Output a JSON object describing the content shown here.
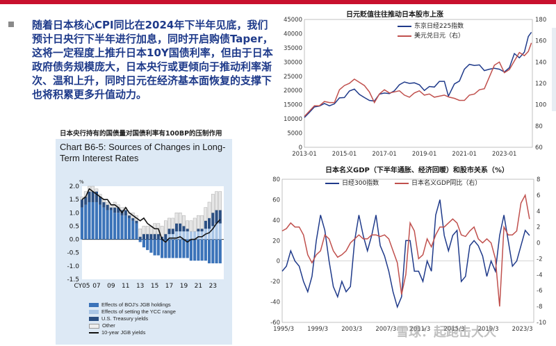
{
  "headline": "随着日本核心CPI同比在2024年下半年见底，我们预计日央行下半年进行加息，同时开启购债Taper，这将一定程度上推升日本10Y国债利率，但由于日本政府债务规模庞大，日本央行或更倾向于推动利率渐次、温和上升，同时日元在经济基本面恢复的支撑下也将积累更多升值动力。",
  "left_figure": {
    "caption": "日本央行持有的国债量对国债利率有100BP的压制作用",
    "panel_title": "Chart B6-5: Sources of Changes in Long-Term Interest Rates",
    "legend": [
      {
        "label": "Effects of BOJ's JGB holdings",
        "color": "#3b73b9"
      },
      {
        "label": "Effects of setting the YCC range",
        "color": "#aac6e6"
      },
      {
        "label": "U.S. Treasury yields",
        "color": "#2b4f82"
      },
      {
        "label": "Other",
        "color": "#eeeeee"
      },
      {
        "label": "10-year JGB yields",
        "color": "#111111"
      }
    ]
  },
  "chart_data": [
    {
      "type": "bar",
      "title": "Chart B6-5: Sources of Changes in Long-Term Interest Rates",
      "ylabel": "%",
      "ylim": [
        -1.5,
        2.0
      ],
      "yticks": [
        -1.5,
        -1.0,
        -0.5,
        0.0,
        0.5,
        1.0,
        1.5,
        2.0
      ],
      "xticks": [
        "CY05",
        "07",
        "09",
        "11",
        "13",
        "15",
        "17",
        "19",
        "21",
        "23"
      ],
      "x_range": [
        2005,
        2024.5
      ],
      "x": [
        2005.0,
        2005.5,
        2006.0,
        2006.5,
        2007.0,
        2007.5,
        2008.0,
        2008.5,
        2009.0,
        2009.5,
        2010.0,
        2010.5,
        2011.0,
        2011.5,
        2012.0,
        2012.5,
        2013.0,
        2013.5,
        2014.0,
        2014.5,
        2015.0,
        2015.5,
        2016.0,
        2016.5,
        2017.0,
        2017.5,
        2018.0,
        2018.5,
        2019.0,
        2019.5,
        2020.0,
        2020.5,
        2021.0,
        2021.5,
        2022.0,
        2022.5,
        2023.0,
        2023.5,
        2024.0
      ],
      "series": [
        {
          "name": "Effects of BOJ's JGB holdings",
          "values": [
            1.2,
            1.3,
            1.4,
            1.4,
            1.4,
            1.3,
            1.2,
            1.1,
            1.1,
            1.0,
            1.0,
            0.9,
            0.9,
            0.8,
            0.7,
            0.6,
            -0.1,
            -0.3,
            -0.4,
            -0.5,
            -0.6,
            -0.6,
            -0.7,
            -0.7,
            -0.7,
            -0.7,
            -0.7,
            -0.7,
            -0.7,
            -0.7,
            -0.8,
            -0.8,
            -0.8,
            -0.8,
            -0.8,
            -0.9,
            -0.9,
            -0.9,
            -0.9
          ]
        },
        {
          "name": "Effects of setting the YCC range",
          "values": [
            0,
            0,
            0,
            0,
            0,
            0,
            0,
            0,
            0,
            0,
            0,
            0,
            0,
            0,
            0,
            0,
            0,
            0,
            0,
            0,
            0,
            0,
            0,
            0,
            0.2,
            0.2,
            0.3,
            0.3,
            0.3,
            0.3,
            0.3,
            0.3,
            0.3,
            0.3,
            0.4,
            0.4,
            0.5,
            0.6,
            0.6
          ]
        },
        {
          "name": "U.S. Treasury yields",
          "values": [
            0.3,
            0.3,
            0.4,
            0.4,
            0.4,
            0.3,
            0.2,
            0.2,
            0.1,
            0.2,
            0.2,
            0.2,
            0.2,
            0.1,
            0.1,
            0.1,
            0.1,
            0.2,
            0.2,
            0.2,
            0.2,
            0.2,
            0.1,
            0.2,
            0.2,
            0.2,
            0.3,
            0.3,
            0.2,
            0.1,
            0,
            0,
            0.1,
            0.1,
            0.3,
            0.4,
            0.5,
            0.5,
            0.5
          ]
        },
        {
          "name": "Other",
          "values": [
            0.1,
            0.2,
            0.2,
            0.2,
            0.1,
            0.1,
            0.1,
            0.1,
            0.1,
            0.2,
            0.1,
            0.1,
            0.1,
            0.1,
            0.2,
            0.2,
            0.3,
            0.3,
            0.3,
            0.3,
            0.4,
            0.4,
            0.4,
            0.5,
            0.4,
            0.4,
            0.4,
            0.4,
            0.4,
            0.3,
            0.4,
            0.5,
            0.5,
            0.5,
            0.5,
            0.6,
            0.7,
            0.7,
            0.7
          ]
        },
        {
          "name": "10-year JGB yields",
          "type": "line",
          "values": [
            1.5,
            1.6,
            1.9,
            1.8,
            1.7,
            1.6,
            1.5,
            1.5,
            1.3,
            1.3,
            1.2,
            1.0,
            1.2,
            1.0,
            0.9,
            0.8,
            0.7,
            0.8,
            0.6,
            0.5,
            0.4,
            0.4,
            0.0,
            -0.1,
            0.05,
            0.05,
            0.05,
            0.1,
            0.0,
            -0.1,
            0.0,
            0.0,
            0.1,
            0.1,
            0.2,
            0.25,
            0.4,
            0.6,
            0.75
          ]
        }
      ]
    },
    {
      "type": "line",
      "title": "日元贬值往往推动日本股市上涨",
      "x_range": [
        2013.0,
        2024.4
      ],
      "xticks": [
        "2013-01",
        "2015-01",
        "2017-01",
        "2019-01",
        "2021-01",
        "2023-01"
      ],
      "ylim_left": [
        0,
        45000
      ],
      "yticks_left": [
        0,
        5000,
        10000,
        15000,
        20000,
        25000,
        30000,
        35000,
        40000,
        45000
      ],
      "ylim_right": [
        60,
        180
      ],
      "yticks_right": [
        60,
        80,
        100,
        120,
        140,
        160,
        180
      ],
      "series": [
        {
          "name": "东京日经225指数",
          "axis": "left",
          "color": "#1f3a8a",
          "x": [
            2013.0,
            2013.25,
            2013.5,
            2013.75,
            2014.0,
            2014.25,
            2014.5,
            2014.75,
            2015.0,
            2015.25,
            2015.5,
            2015.75,
            2016.0,
            2016.25,
            2016.5,
            2016.75,
            2017.0,
            2017.25,
            2017.5,
            2017.75,
            2018.0,
            2018.25,
            2018.5,
            2018.75,
            2019.0,
            2019.25,
            2019.5,
            2019.75,
            2020.0,
            2020.2,
            2020.5,
            2020.75,
            2021.0,
            2021.25,
            2021.5,
            2021.75,
            2022.0,
            2022.25,
            2022.5,
            2022.75,
            2023.0,
            2023.25,
            2023.5,
            2023.75,
            2024.0,
            2024.2,
            2024.35
          ],
          "values": [
            10500,
            12300,
            14200,
            14500,
            15400,
            14600,
            15300,
            17400,
            17500,
            19800,
            20500,
            18600,
            17500,
            16500,
            16300,
            18700,
            19100,
            18900,
            19900,
            22000,
            23000,
            22500,
            22700,
            22000,
            20000,
            21400,
            21200,
            23200,
            23200,
            18000,
            22300,
            23300,
            27500,
            29200,
            28800,
            29000,
            27000,
            27500,
            27800,
            27500,
            26500,
            28000,
            33000,
            31500,
            33500,
            39000,
            40500
          ]
        },
        {
          "name": "美元兑日元（右）",
          "axis": "right",
          "color": "#c0504d",
          "x": [
            2013.0,
            2013.25,
            2013.5,
            2013.75,
            2014.0,
            2014.25,
            2014.5,
            2014.75,
            2015.0,
            2015.25,
            2015.5,
            2015.75,
            2016.0,
            2016.25,
            2016.5,
            2016.75,
            2017.0,
            2017.25,
            2017.5,
            2017.75,
            2018.0,
            2018.25,
            2018.5,
            2018.75,
            2019.0,
            2019.25,
            2019.5,
            2019.75,
            2020.0,
            2020.25,
            2020.5,
            2020.75,
            2021.0,
            2021.25,
            2021.5,
            2021.75,
            2022.0,
            2022.25,
            2022.5,
            2022.75,
            2023.0,
            2023.25,
            2023.5,
            2023.75,
            2024.0,
            2024.2,
            2024.35
          ],
          "values": [
            89,
            94,
            99,
            99,
            103,
            102,
            102,
            114,
            118,
            120,
            124,
            121,
            118,
            112,
            102,
            110,
            114,
            111,
            112,
            113,
            109,
            107,
            111,
            113,
            109,
            110,
            107,
            108,
            109,
            107,
            106,
            104,
            104,
            109,
            110,
            114,
            115,
            126,
            137,
            140,
            130,
            133,
            141,
            149,
            146,
            150,
            158
          ]
        }
      ]
    },
    {
      "type": "line",
      "title": "日本名义GDP（下半年通胀、经济回暖）和股市关系（%）",
      "x_range": [
        1995.0,
        2024.5
      ],
      "xticks": [
        "1995/3",
        "1999/3",
        "2003/3",
        "2007/3",
        "2011/3",
        "2015/3",
        "2019/3",
        "2023/3"
      ],
      "ylim_left": [
        -60,
        80
      ],
      "yticks_left": [
        -60,
        -40,
        -20,
        0,
        20,
        40,
        60,
        80
      ],
      "ylim_right": [
        -10,
        8
      ],
      "yticks_right": [
        -10,
        -8,
        -6,
        -4,
        -2,
        0,
        2,
        4,
        6,
        8
      ],
      "series": [
        {
          "name": "日经300指数",
          "axis": "left",
          "color": "#1f3a8a",
          "x": [
            1995.0,
            1995.5,
            1996.0,
            1996.5,
            1997.0,
            1997.5,
            1998.0,
            1998.5,
            1999.0,
            1999.5,
            2000.0,
            2000.5,
            2001.0,
            2001.5,
            2002.0,
            2002.5,
            2003.0,
            2003.5,
            2004.0,
            2004.5,
            2005.0,
            2005.5,
            2006.0,
            2006.5,
            2007.0,
            2007.5,
            2008.0,
            2008.5,
            2009.0,
            2009.5,
            2010.0,
            2010.5,
            2011.0,
            2011.5,
            2012.0,
            2012.5,
            2013.0,
            2013.5,
            2014.0,
            2014.5,
            2015.0,
            2015.5,
            2016.0,
            2016.5,
            2017.0,
            2017.5,
            2018.0,
            2018.5,
            2019.0,
            2019.5,
            2020.0,
            2020.5,
            2021.0,
            2021.5,
            2022.0,
            2022.5,
            2023.0,
            2023.5,
            2024.0
          ],
          "values": [
            -10,
            -5,
            10,
            0,
            -5,
            -20,
            -30,
            -15,
            20,
            45,
            30,
            0,
            -25,
            -35,
            -20,
            -30,
            -25,
            20,
            45,
            25,
            10,
            25,
            45,
            15,
            5,
            -10,
            -30,
            -45,
            -35,
            20,
            20,
            -10,
            -10,
            -20,
            0,
            -10,
            45,
            60,
            25,
            10,
            25,
            30,
            -20,
            -15,
            15,
            20,
            15,
            5,
            -15,
            0,
            -10,
            25,
            45,
            20,
            -5,
            0,
            15,
            30,
            25
          ]
        },
        {
          "name": "日本名义GDP同比（右）",
          "axis": "right",
          "color": "#c0504d",
          "x": [
            1995.0,
            1995.5,
            1996.0,
            1996.5,
            1997.0,
            1997.5,
            1998.0,
            1998.5,
            1999.0,
            1999.5,
            2000.0,
            2000.5,
            2001.0,
            2001.5,
            2002.0,
            2002.5,
            2003.0,
            2003.5,
            2004.0,
            2004.5,
            2005.0,
            2005.5,
            2006.0,
            2006.5,
            2007.0,
            2007.5,
            2008.0,
            2008.5,
            2009.0,
            2009.5,
            2010.0,
            2010.5,
            2011.0,
            2011.5,
            2012.0,
            2012.5,
            2013.0,
            2013.5,
            2014.0,
            2014.5,
            2015.0,
            2015.5,
            2016.0,
            2016.5,
            2017.0,
            2017.5,
            2018.0,
            2018.5,
            2019.0,
            2019.5,
            2020.0,
            2020.5,
            2021.0,
            2021.5,
            2022.0,
            2022.5,
            2023.0,
            2023.5,
            2024.0
          ],
          "values": [
            1.5,
            1.8,
            2.5,
            2.0,
            2.0,
            1.0,
            -1.5,
            -2.5,
            -1.5,
            -1.0,
            1.0,
            0.5,
            -1.0,
            -1.8,
            -1.5,
            -1.0,
            0.0,
            0.5,
            1.0,
            0.5,
            0.5,
            1.0,
            1.0,
            0.8,
            1.0,
            0.5,
            -1.0,
            -2.5,
            -6.5,
            -4.0,
            2.5,
            1.5,
            -2.0,
            -1.5,
            0.5,
            -0.5,
            1.0,
            2.0,
            2.0,
            2.5,
            3.0,
            2.5,
            1.0,
            0.8,
            1.5,
            2.0,
            0.5,
            0.0,
            0.5,
            0.0,
            -2.0,
            -8.0,
            2.0,
            1.0,
            1.0,
            1.5,
            5.0,
            6.0,
            3.0
          ]
        }
      ]
    }
  ],
  "right_top": {
    "title": "日元贬值往往推动日本股市上涨",
    "legend": [
      {
        "label": "东京日经225指数",
        "color": "#1f3a8a"
      },
      {
        "label": "美元兑日元（右）",
        "color": "#c0504d"
      }
    ]
  },
  "right_bottom": {
    "title": "日本名义GDP（下半年通胀、经济回暖）和股市关系（%）",
    "legend": [
      {
        "label": "日经300指数",
        "color": "#1f3a8a"
      },
      {
        "label": "日本名义GDP同比（右）",
        "color": "#c0504d"
      }
    ]
  },
  "watermark": "雪球：起跑击大人"
}
